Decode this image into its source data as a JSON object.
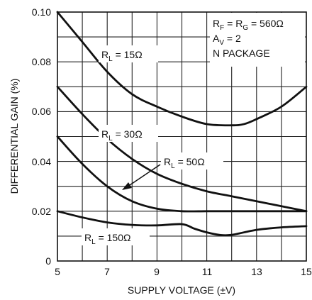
{
  "chart_data": {
    "type": "line",
    "xlabel": "SUPPLY VOLTAGE (±V)",
    "ylabel": "DIFFERENTIAL GAIN (%)",
    "xlim": [
      5,
      15
    ],
    "ylim": [
      0,
      0.1
    ],
    "x_ticks": [
      "5",
      "7",
      "9",
      "11",
      "13",
      "15"
    ],
    "y_ticks": [
      "0",
      "0.02",
      "0.04",
      "0.06",
      "0.08",
      "0.10"
    ],
    "grid": true,
    "series": [
      {
        "name": "RL = 15Ω",
        "label": {
          "main": "R",
          "sub": "L",
          "rest": " = 15Ω"
        },
        "x": [
          5,
          6,
          7,
          8,
          9,
          10,
          11,
          12,
          12.5,
          13,
          14,
          15
        ],
        "y": [
          0.1,
          0.088,
          0.076,
          0.067,
          0.062,
          0.058,
          0.055,
          0.0545,
          0.055,
          0.057,
          0.062,
          0.07
        ]
      },
      {
        "name": "RL = 30Ω",
        "label": {
          "main": "R",
          "sub": "L",
          "rest": " = 30Ω"
        },
        "x": [
          5,
          6,
          7,
          8,
          9,
          10,
          11,
          12,
          13,
          14,
          15
        ],
        "y": [
          0.07,
          0.059,
          0.049,
          0.041,
          0.035,
          0.031,
          0.028,
          0.026,
          0.024,
          0.022,
          0.02
        ]
      },
      {
        "name": "RL = 50Ω",
        "label": {
          "main": "R",
          "sub": "L",
          "rest": " = 50Ω"
        },
        "x": [
          5,
          6,
          7,
          8,
          9,
          10,
          11,
          12,
          13,
          14,
          15
        ],
        "y": [
          0.05,
          0.039,
          0.03,
          0.024,
          0.021,
          0.02,
          0.02,
          0.02,
          0.02,
          0.02,
          0.02
        ]
      },
      {
        "name": "RL = 150Ω",
        "label": {
          "main": "R",
          "sub": "L",
          "rest": " = 150Ω"
        },
        "x": [
          5,
          6,
          7,
          8,
          9,
          10,
          10.5,
          11,
          11.5,
          12,
          13,
          14,
          15
        ],
        "y": [
          0.02,
          0.0175,
          0.0155,
          0.0145,
          0.0143,
          0.0148,
          0.013,
          0.0115,
          0.0105,
          0.0105,
          0.0125,
          0.0135,
          0.014
        ]
      }
    ],
    "annotations": [
      {
        "main": "R",
        "sub": "F",
        "rest": " = R",
        "sub2": "G",
        "rest2": " = 560Ω"
      },
      {
        "main": "A",
        "sub": "V",
        "rest": " = 2"
      },
      {
        "main": "N PACKAGE",
        "sub": "",
        "rest": ""
      }
    ]
  }
}
